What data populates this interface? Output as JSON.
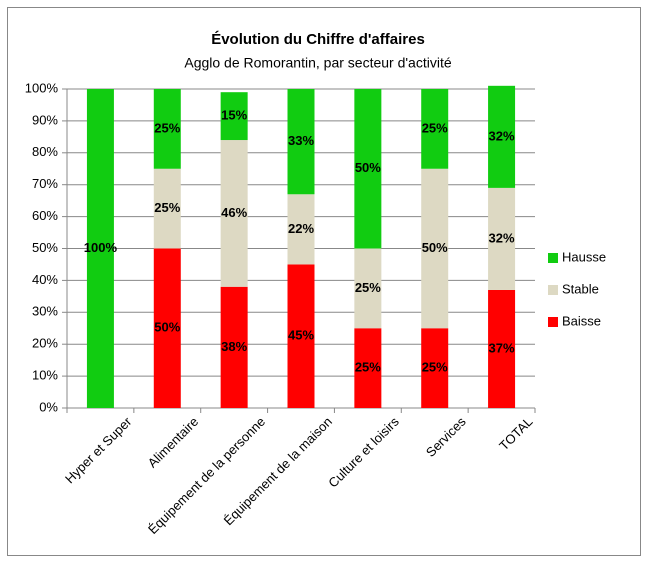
{
  "chart_data": {
    "type": "stacked-bar",
    "title": "Évolution du Chiffre d'affaires",
    "subtitle": "Agglo de Romorantin, par secteur d'activité",
    "categories": [
      "Hyper et Super",
      "Alimentaire",
      "Équipement de la personne",
      "Équipement de la maison",
      "Culture et loisirs",
      "Services",
      "TOTAL"
    ],
    "series": [
      {
        "name": "Baisse",
        "color": "#ff0000",
        "values": [
          0,
          50,
          38,
          45,
          25,
          25,
          37
        ],
        "value_labels": [
          null,
          "50%",
          "38%",
          "45%",
          "25%",
          "25%",
          "37%"
        ]
      },
      {
        "name": "Stable",
        "color": "#ddd9c3",
        "values": [
          0,
          25,
          46,
          22,
          25,
          50,
          32
        ],
        "value_labels": [
          null,
          "25%",
          "46%",
          "22%",
          "25%",
          "50%",
          "32%"
        ]
      },
      {
        "name": "Hausse",
        "color": "#11cc11",
        "values": [
          100,
          25,
          15,
          33,
          50,
          25,
          32
        ],
        "value_labels": [
          "100%",
          "25%",
          "15%",
          "33%",
          "50%",
          "25%",
          "32%"
        ]
      }
    ],
    "ylim": [
      0,
      100
    ],
    "yticks": [
      {
        "value": 0,
        "label": "0%"
      },
      {
        "value": 10,
        "label": "10%"
      },
      {
        "value": 20,
        "label": "20%"
      },
      {
        "value": 30,
        "label": "30%"
      },
      {
        "value": 40,
        "label": "40%"
      },
      {
        "value": 50,
        "label": "50%"
      },
      {
        "value": 60,
        "label": "60%"
      },
      {
        "value": 70,
        "label": "70%"
      },
      {
        "value": 80,
        "label": "80%"
      },
      {
        "value": 90,
        "label": "90%"
      },
      {
        "value": 100,
        "label": "100%"
      }
    ],
    "grid": true,
    "legend": "right"
  }
}
